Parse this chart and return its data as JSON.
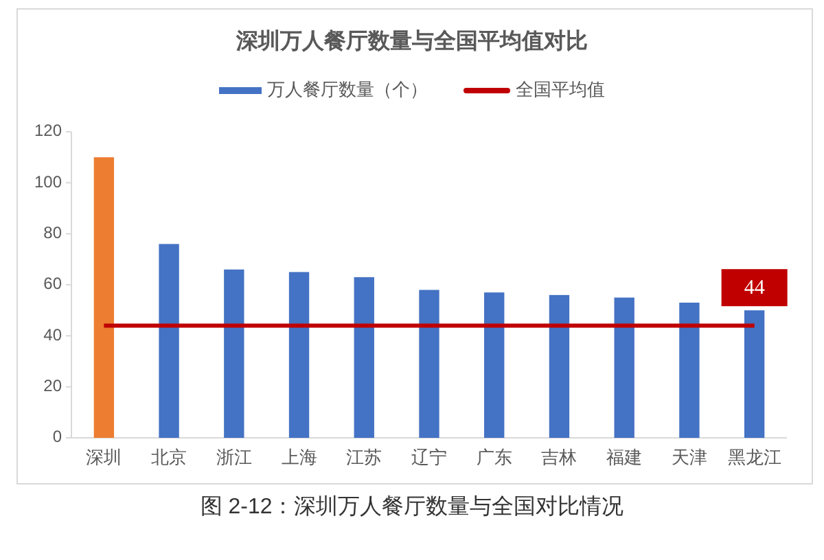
{
  "chart_data": {
    "type": "bar",
    "title": "深圳万人餐厅数量与全国平均值对比",
    "categories": [
      "深圳",
      "北京",
      "浙江",
      "上海",
      "江苏",
      "辽宁",
      "广东",
      "吉林",
      "福建",
      "天津",
      "黑龙江"
    ],
    "series": [
      {
        "name": "万人餐厅数量（个）",
        "color": "#4472c4",
        "colors": [
          "#ed7d31",
          "#4472c4",
          "#4472c4",
          "#4472c4",
          "#4472c4",
          "#4472c4",
          "#4472c4",
          "#4472c4",
          "#4472c4",
          "#4472c4",
          "#4472c4"
        ],
        "values": [
          110,
          76,
          66,
          65,
          63,
          58,
          57,
          56,
          55,
          53,
          50
        ]
      },
      {
        "name": "全国平均值",
        "type": "line",
        "color": "#c00000",
        "values": [
          44,
          44,
          44,
          44,
          44,
          44,
          44,
          44,
          44,
          44,
          44
        ],
        "value_labels": [
          null,
          null,
          null,
          null,
          null,
          null,
          null,
          null,
          null,
          null,
          "44"
        ]
      }
    ],
    "ylim": [
      0,
      120
    ],
    "yticks": [
      0,
      20,
      40,
      60,
      80,
      100,
      120
    ],
    "legend": "top",
    "annotations": [
      "图 2-12：深圳万人餐厅数量与全国对比情况"
    ]
  }
}
